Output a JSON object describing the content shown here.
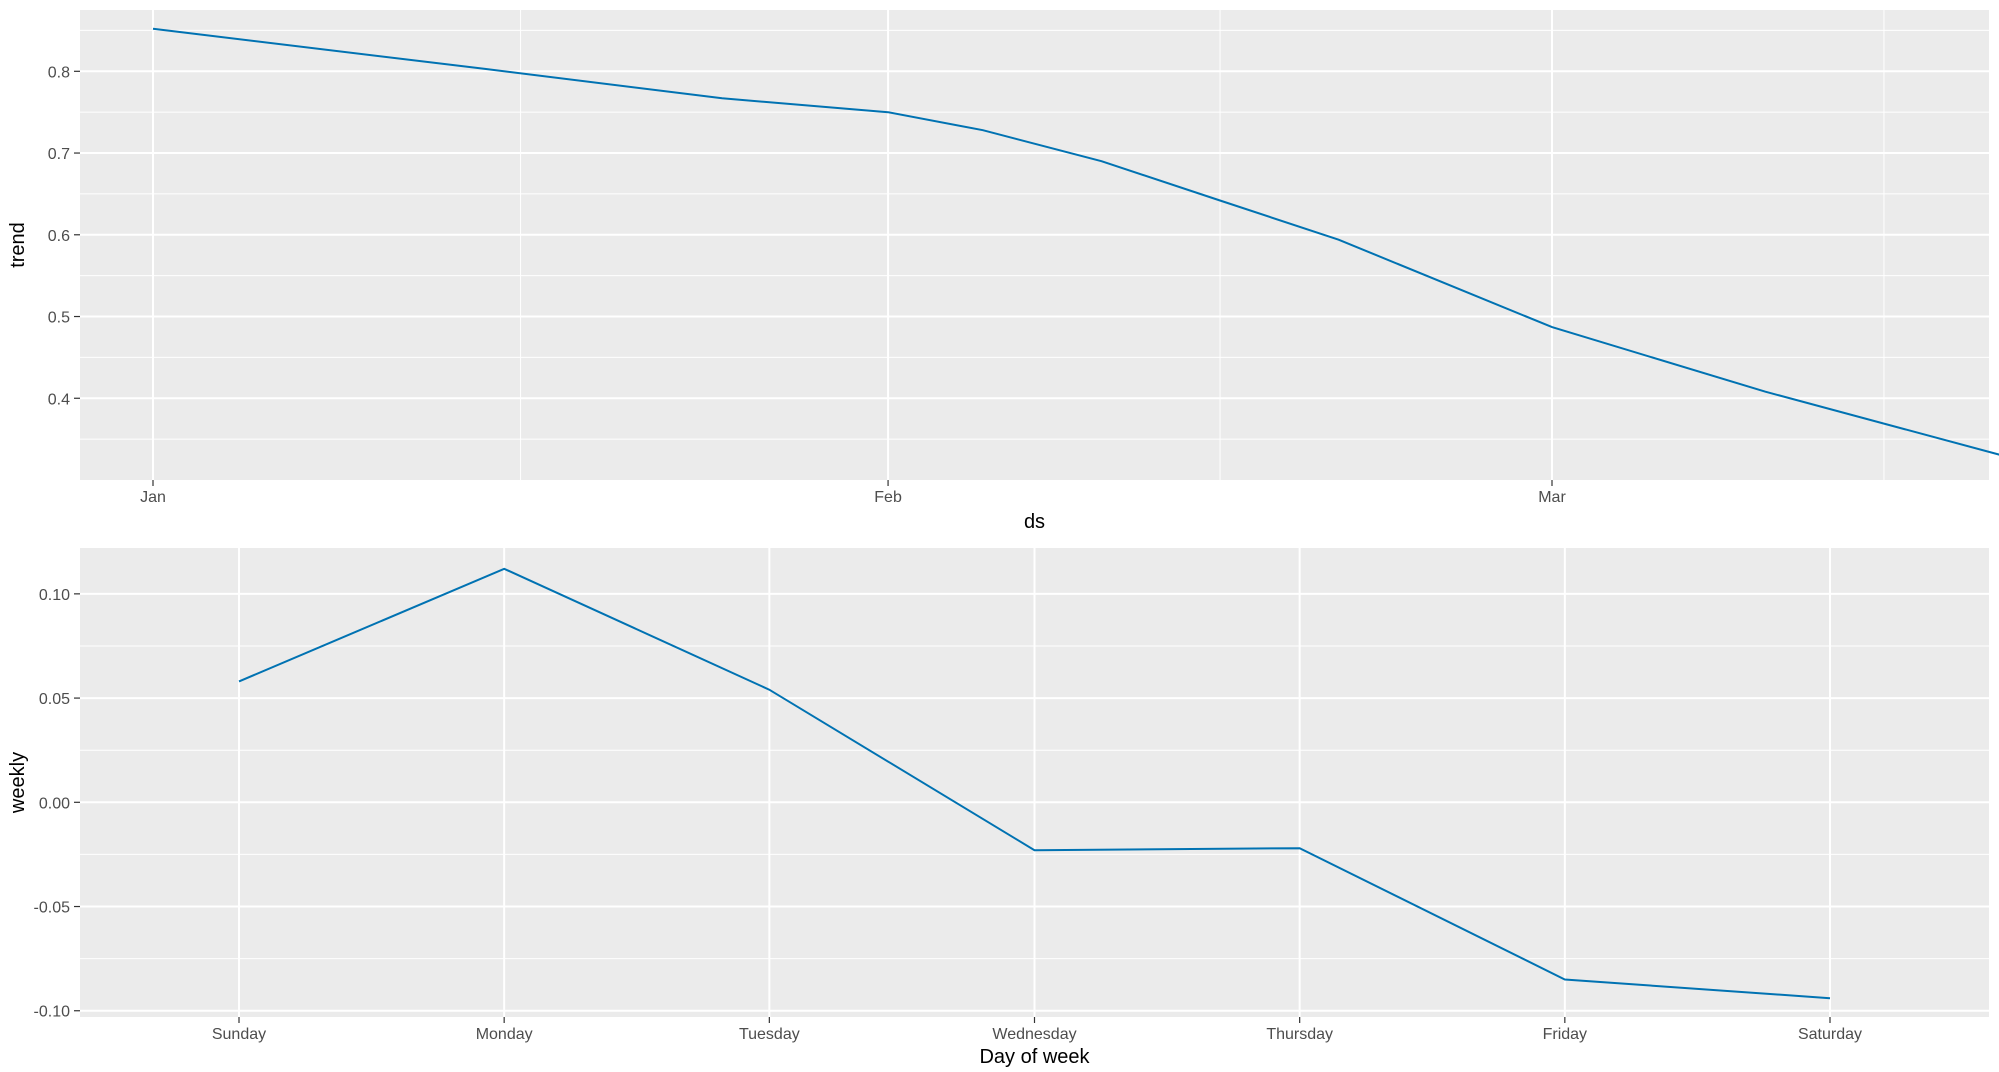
{
  "chart_data": [
    {
      "type": "line",
      "title": "",
      "xlabel": "ds",
      "ylabel": "trend",
      "x_ticks": [
        "Jan",
        "Feb",
        "Mar"
      ],
      "ylim": [
        0.3,
        0.875
      ],
      "y_ticks": [
        0.4,
        0.5,
        0.6,
        0.7,
        0.8
      ],
      "y_tick_labels": [
        "0.4",
        "0.5",
        "0.6",
        "0.7",
        "0.8"
      ],
      "grid": true,
      "line_color": "#0072B2",
      "series": [
        {
          "x": [
            "2019-01-01",
            "2019-01-15",
            "2019-01-25",
            "2019-02-01",
            "2019-02-05",
            "2019-02-10",
            "2019-02-15",
            "2019-02-20",
            "2019-03-01",
            "2019-03-10",
            "2019-03-20"
          ],
          "values": [
            0.852,
            0.803,
            0.767,
            0.75,
            0.728,
            0.69,
            0.642,
            0.594,
            0.487,
            0.408,
            0.33
          ]
        }
      ]
    },
    {
      "type": "line",
      "title": "",
      "xlabel": "Day of week",
      "ylabel": "weekly",
      "categories": [
        "Sunday",
        "Monday",
        "Tuesday",
        "Wednesday",
        "Thursday",
        "Friday",
        "Saturday"
      ],
      "ylim": [
        -0.103,
        0.122
      ],
      "y_ticks": [
        -0.1,
        -0.05,
        0.0,
        0.05,
        0.1
      ],
      "y_tick_labels": [
        "-0.10",
        "-0.05",
        "0.00",
        "0.05",
        "0.10"
      ],
      "grid": true,
      "line_color": "#0072B2",
      "series": [
        {
          "values": [
            0.058,
            0.112,
            0.054,
            -0.023,
            -0.022,
            -0.085,
            -0.094
          ]
        }
      ]
    }
  ]
}
